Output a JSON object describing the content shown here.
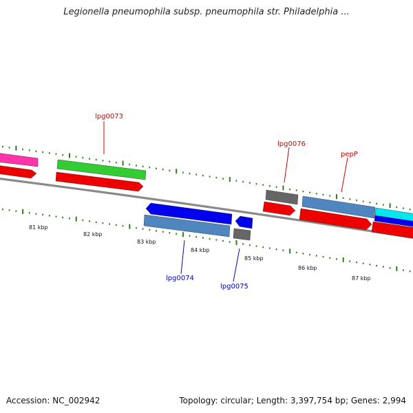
{
  "title": "Legionella pneumophila subsp. pneumophila str. Philadelphia ...",
  "footer": {
    "accession": "Accession: NC_002942",
    "summary": "Topology: circular; Length: 3,397,754 bp; Genes: 2,994"
  },
  "colors": {
    "backbone": "#8a8a8a",
    "tick": "#2f7d1c",
    "forward_label": "#cc0000",
    "reverse_label": "#0000bb",
    "red": "#ee0000",
    "blue": "#0000ee",
    "steel": "#4f86c0",
    "green": "#33cc33",
    "gray": "#666666",
    "pink": "#ff33aa",
    "cyan": "#00e8ee"
  },
  "kbp_labels": [
    "81 kbp",
    "82 kbp",
    "83 kbp",
    "84 kbp",
    "85 kbp",
    "86 kbp",
    "87 kbp"
  ],
  "gene_labels": {
    "lpg0073": "lpg0073",
    "lpg0076": "lpg0076",
    "pepP": "pepP",
    "lpg0074": "lpg0074",
    "lpg0075": "lpg0075"
  }
}
